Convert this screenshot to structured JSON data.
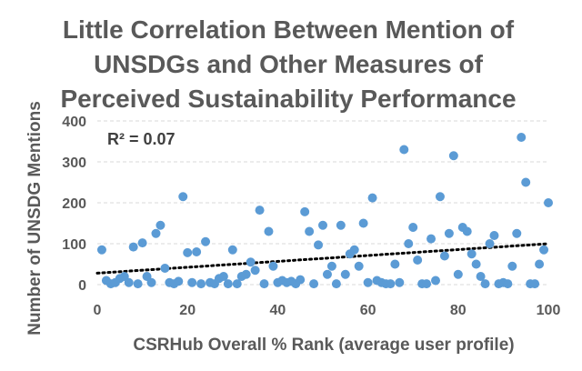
{
  "chart_data": {
    "type": "scatter",
    "title_lines": [
      "Little Correlation Between Mention of",
      "UNSDGs and Other Measures of",
      "Perceived Sustainability Performance"
    ],
    "xlabel": "CSRHub Overall % Rank (average user profile)",
    "ylabel": "Number of UNSDG Mentions",
    "xlim": [
      0,
      100
    ],
    "ylim": [
      0,
      400
    ],
    "x_ticks": [
      "0",
      "20",
      "40",
      "60",
      "80",
      "100"
    ],
    "y_ticks": [
      "0",
      "100",
      "200",
      "300",
      "400"
    ],
    "grid": "horizontal-dashed",
    "annotation": "R² = 0.07",
    "trendline": {
      "style": "dotted",
      "from": [
        0,
        28
      ],
      "to": [
        100,
        100
      ]
    },
    "point_color": "#5B9BD5",
    "points": [
      {
        "x": 1,
        "y": 85
      },
      {
        "x": 2,
        "y": 10
      },
      {
        "x": 3,
        "y": 2
      },
      {
        "x": 4,
        "y": 5
      },
      {
        "x": 5,
        "y": 15
      },
      {
        "x": 6,
        "y": 20
      },
      {
        "x": 7,
        "y": 5
      },
      {
        "x": 8,
        "y": 92
      },
      {
        "x": 9,
        "y": 2
      },
      {
        "x": 10,
        "y": 102
      },
      {
        "x": 11,
        "y": 20
      },
      {
        "x": 12,
        "y": 5
      },
      {
        "x": 13,
        "y": 125
      },
      {
        "x": 14,
        "y": 145
      },
      {
        "x": 15,
        "y": 40
      },
      {
        "x": 16,
        "y": 5
      },
      {
        "x": 17,
        "y": 2
      },
      {
        "x": 18,
        "y": 8
      },
      {
        "x": 19,
        "y": 215
      },
      {
        "x": 20,
        "y": 78
      },
      {
        "x": 21,
        "y": 5
      },
      {
        "x": 22,
        "y": 80
      },
      {
        "x": 23,
        "y": 2
      },
      {
        "x": 24,
        "y": 105
      },
      {
        "x": 25,
        "y": 5
      },
      {
        "x": 26,
        "y": 2
      },
      {
        "x": 27,
        "y": 15
      },
      {
        "x": 28,
        "y": 20
      },
      {
        "x": 29,
        "y": 2
      },
      {
        "x": 30,
        "y": 85
      },
      {
        "x": 31,
        "y": 2
      },
      {
        "x": 32,
        "y": 20
      },
      {
        "x": 33,
        "y": 25
      },
      {
        "x": 34,
        "y": 55
      },
      {
        "x": 35,
        "y": 35
      },
      {
        "x": 36,
        "y": 182
      },
      {
        "x": 37,
        "y": 2
      },
      {
        "x": 38,
        "y": 130
      },
      {
        "x": 39,
        "y": 45
      },
      {
        "x": 40,
        "y": 5
      },
      {
        "x": 41,
        "y": 10
      },
      {
        "x": 42,
        "y": 5
      },
      {
        "x": 43,
        "y": 8
      },
      {
        "x": 44,
        "y": 2
      },
      {
        "x": 45,
        "y": 12
      },
      {
        "x": 46,
        "y": 178
      },
      {
        "x": 47,
        "y": 130
      },
      {
        "x": 48,
        "y": 2
      },
      {
        "x": 49,
        "y": 97
      },
      {
        "x": 50,
        "y": 145
      },
      {
        "x": 51,
        "y": 25
      },
      {
        "x": 52,
        "y": 45
      },
      {
        "x": 53,
        "y": 2
      },
      {
        "x": 54,
        "y": 145
      },
      {
        "x": 55,
        "y": 25
      },
      {
        "x": 56,
        "y": 75
      },
      {
        "x": 57,
        "y": 85
      },
      {
        "x": 58,
        "y": 45
      },
      {
        "x": 59,
        "y": 150
      },
      {
        "x": 60,
        "y": 5
      },
      {
        "x": 61,
        "y": 212
      },
      {
        "x": 62,
        "y": 10
      },
      {
        "x": 63,
        "y": 5
      },
      {
        "x": 64,
        "y": 2
      },
      {
        "x": 65,
        "y": 2
      },
      {
        "x": 66,
        "y": 50
      },
      {
        "x": 67,
        "y": 5
      },
      {
        "x": 68,
        "y": 330
      },
      {
        "x": 69,
        "y": 100
      },
      {
        "x": 70,
        "y": 140
      },
      {
        "x": 71,
        "y": 60
      },
      {
        "x": 72,
        "y": 2
      },
      {
        "x": 73,
        "y": 2
      },
      {
        "x": 74,
        "y": 112
      },
      {
        "x": 75,
        "y": 10
      },
      {
        "x": 76,
        "y": 215
      },
      {
        "x": 77,
        "y": 70
      },
      {
        "x": 78,
        "y": 125
      },
      {
        "x": 79,
        "y": 315
      },
      {
        "x": 80,
        "y": 25
      },
      {
        "x": 81,
        "y": 140
      },
      {
        "x": 82,
        "y": 130
      },
      {
        "x": 83,
        "y": 75
      },
      {
        "x": 84,
        "y": 50
      },
      {
        "x": 85,
        "y": 20
      },
      {
        "x": 86,
        "y": 2
      },
      {
        "x": 87,
        "y": 100
      },
      {
        "x": 88,
        "y": 120
      },
      {
        "x": 89,
        "y": 2
      },
      {
        "x": 90,
        "y": 5
      },
      {
        "x": 91,
        "y": 2
      },
      {
        "x": 92,
        "y": 45
      },
      {
        "x": 93,
        "y": 125
      },
      {
        "x": 94,
        "y": 360
      },
      {
        "x": 95,
        "y": 250
      },
      {
        "x": 96,
        "y": 2
      },
      {
        "x": 97,
        "y": 2
      },
      {
        "x": 98,
        "y": 50
      },
      {
        "x": 99,
        "y": 85
      },
      {
        "x": 100,
        "y": 200
      }
    ]
  }
}
